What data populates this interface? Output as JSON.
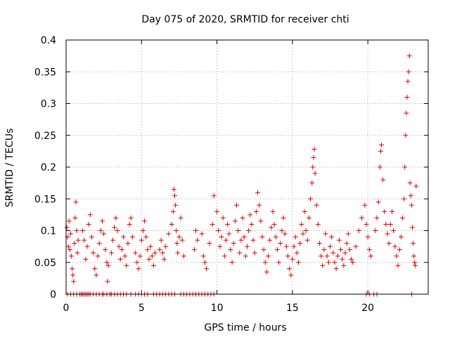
{
  "chart_data": {
    "type": "scatter",
    "title": "Day 075 of 2020, SRMTID for receiver chti",
    "xlabel": "GPS time / hours",
    "ylabel": "SRMTID / TECUs",
    "xlim": [
      0,
      24
    ],
    "ylim": [
      0,
      0.4
    ],
    "xticks": [
      0,
      5,
      10,
      15,
      20
    ],
    "xtick_labels": [
      "0",
      "5",
      "10",
      "15",
      "20"
    ],
    "yticks": [
      0,
      0.05,
      0.1,
      0.15,
      0.2,
      0.25,
      0.3,
      0.35,
      0.4
    ],
    "ytick_labels": [
      "0",
      "0.05",
      "0.1",
      "0.15",
      "0.2",
      "0.25",
      "0.3",
      "0.35",
      "0.4"
    ],
    "grid": true,
    "marker": "+",
    "series": [
      {
        "name": "SRMTID",
        "color": "#dd0000",
        "points": [
          [
            0.05,
            0.105
          ],
          [
            0.1,
            0.09
          ],
          [
            0.15,
            0.075
          ],
          [
            0.2,
            0.115
          ],
          [
            0.25,
            0.07
          ],
          [
            0.3,
            0.095
          ],
          [
            0.35,
            0.06
          ],
          [
            0.4,
            0.04
          ],
          [
            0.45,
            0.03
          ],
          [
            0.5,
            0.02
          ],
          [
            0.55,
            0.08
          ],
          [
            0.6,
            0.12
          ],
          [
            0.65,
            0.145
          ],
          [
            0.7,
            0.1
          ],
          [
            0.75,
            0.065
          ],
          [
            0.8,
            0.085
          ],
          [
            1.1,
            0.1
          ],
          [
            1.2,
            0.085
          ],
          [
            1.3,
            0.055
          ],
          [
            1.4,
            0.075
          ],
          [
            1.5,
            0.11
          ],
          [
            1.6,
            0.125
          ],
          [
            1.7,
            0.09
          ],
          [
            1.8,
            0.065
          ],
          [
            1.9,
            0.04
          ],
          [
            2.0,
            0.03
          ],
          [
            2.1,
            0.06
          ],
          [
            2.2,
            0.08
          ],
          [
            2.3,
            0.1
          ],
          [
            2.4,
            0.115
          ],
          [
            2.5,
            0.095
          ],
          [
            2.6,
            0.07
          ],
          [
            2.7,
            0.05
          ],
          [
            2.75,
            0.02
          ],
          [
            2.8,
            0.045
          ],
          [
            3.0,
            0.065
          ],
          [
            3.1,
            0.085
          ],
          [
            3.2,
            0.105
          ],
          [
            3.3,
            0.12
          ],
          [
            3.4,
            0.1
          ],
          [
            3.5,
            0.075
          ],
          [
            3.6,
            0.055
          ],
          [
            3.7,
            0.07
          ],
          [
            3.8,
            0.09
          ],
          [
            3.9,
            0.06
          ],
          [
            4.0,
            0.045
          ],
          [
            4.1,
            0.08
          ],
          [
            4.2,
            0.11
          ],
          [
            4.3,
            0.12
          ],
          [
            4.4,
            0.09
          ],
          [
            4.6,
            0.065
          ],
          [
            4.7,
            0.05
          ],
          [
            4.8,
            0.04
          ],
          [
            4.9,
            0.06
          ],
          [
            5.0,
            0.085
          ],
          [
            5.1,
            0.1
          ],
          [
            5.2,
            0.115
          ],
          [
            5.3,
            0.09
          ],
          [
            5.4,
            0.07
          ],
          [
            5.5,
            0.055
          ],
          [
            5.6,
            0.075
          ],
          [
            5.7,
            0.06
          ],
          [
            5.8,
            0.045
          ],
          [
            5.9,
            0.065
          ],
          [
            6.2,
            0.07
          ],
          [
            6.3,
            0.085
          ],
          [
            6.4,
            0.065
          ],
          [
            6.5,
            0.055
          ],
          [
            6.6,
            0.075
          ],
          [
            6.8,
            0.095
          ],
          [
            7.0,
            0.11
          ],
          [
            7.1,
            0.13
          ],
          [
            7.15,
            0.165
          ],
          [
            7.2,
            0.155
          ],
          [
            7.25,
            0.14
          ],
          [
            7.3,
            0.1
          ],
          [
            7.35,
            0.08
          ],
          [
            7.4,
            0.065
          ],
          [
            7.5,
            0.09
          ],
          [
            7.6,
            0.12
          ],
          [
            7.7,
            0.085
          ],
          [
            7.8,
            0.06
          ],
          [
            8.5,
            0.07
          ],
          [
            8.6,
            0.1
          ],
          [
            8.7,
            0.085
          ],
          [
            9.0,
            0.095
          ],
          [
            9.1,
            0.06
          ],
          [
            9.2,
            0.05
          ],
          [
            9.3,
            0.04
          ],
          [
            9.5,
            0.08
          ],
          [
            9.7,
            0.11
          ],
          [
            9.8,
            0.155
          ],
          [
            10.0,
            0.13
          ],
          [
            10.1,
            0.1
          ],
          [
            10.2,
            0.075
          ],
          [
            10.3,
            0.09
          ],
          [
            10.4,
            0.12
          ],
          [
            10.5,
            0.06
          ],
          [
            10.6,
            0.085
          ],
          [
            10.7,
            0.11
          ],
          [
            10.8,
            0.095
          ],
          [
            10.9,
            0.07
          ],
          [
            11.0,
            0.05
          ],
          [
            11.1,
            0.08
          ],
          [
            11.2,
            0.115
          ],
          [
            11.3,
            0.14
          ],
          [
            11.4,
            0.1
          ],
          [
            11.5,
            0.065
          ],
          [
            11.6,
            0.085
          ],
          [
            11.7,
            0.12
          ],
          [
            11.8,
            0.09
          ],
          [
            11.9,
            0.06
          ],
          [
            12.0,
            0.075
          ],
          [
            12.1,
            0.1
          ],
          [
            12.2,
            0.125
          ],
          [
            12.3,
            0.11
          ],
          [
            12.4,
            0.085
          ],
          [
            12.5,
            0.065
          ],
          [
            12.6,
            0.13
          ],
          [
            12.7,
            0.16
          ],
          [
            12.8,
            0.14
          ],
          [
            12.9,
            0.115
          ],
          [
            13.0,
            0.09
          ],
          [
            13.1,
            0.07
          ],
          [
            13.2,
            0.05
          ],
          [
            13.3,
            0.035
          ],
          [
            13.4,
            0.06
          ],
          [
            13.5,
            0.085
          ],
          [
            13.6,
            0.105
          ],
          [
            13.7,
            0.13
          ],
          [
            13.8,
            0.11
          ],
          [
            13.9,
            0.09
          ],
          [
            14.0,
            0.07
          ],
          [
            14.1,
            0.05
          ],
          [
            14.2,
            0.08
          ],
          [
            14.3,
            0.1
          ],
          [
            14.4,
            0.12
          ],
          [
            14.5,
            0.095
          ],
          [
            14.6,
            0.075
          ],
          [
            14.7,
            0.06
          ],
          [
            14.8,
            0.04
          ],
          [
            14.9,
            0.03
          ],
          [
            15.0,
            0.055
          ],
          [
            15.1,
            0.075
          ],
          [
            15.2,
            0.09
          ],
          [
            15.3,
            0.065
          ],
          [
            15.4,
            0.05
          ],
          [
            15.5,
            0.08
          ],
          [
            15.6,
            0.11
          ],
          [
            15.7,
            0.095
          ],
          [
            15.8,
            0.13
          ],
          [
            15.9,
            0.1
          ],
          [
            16.0,
            0.085
          ],
          [
            16.1,
            0.12
          ],
          [
            16.2,
            0.15
          ],
          [
            16.3,
            0.175
          ],
          [
            16.35,
            0.2
          ],
          [
            16.4,
            0.215
          ],
          [
            16.45,
            0.228
          ],
          [
            16.5,
            0.19
          ],
          [
            16.6,
            0.14
          ],
          [
            16.7,
            0.11
          ],
          [
            16.8,
            0.08
          ],
          [
            16.9,
            0.06
          ],
          [
            17.0,
            0.045
          ],
          [
            17.1,
            0.07
          ],
          [
            17.2,
            0.095
          ],
          [
            17.3,
            0.06
          ],
          [
            17.4,
            0.05
          ],
          [
            17.5,
            0.075
          ],
          [
            17.6,
            0.09
          ],
          [
            17.7,
            0.065
          ],
          [
            17.8,
            0.05
          ],
          [
            17.9,
            0.04
          ],
          [
            18.0,
            0.06
          ],
          [
            18.1,
            0.085
          ],
          [
            18.2,
            0.07
          ],
          [
            18.3,
            0.055
          ],
          [
            18.4,
            0.045
          ],
          [
            18.5,
            0.065
          ],
          [
            18.6,
            0.08
          ],
          [
            18.7,
            0.095
          ],
          [
            18.8,
            0.07
          ],
          [
            18.9,
            0.055
          ],
          [
            19.0,
            0.05
          ],
          [
            19.2,
            0.075
          ],
          [
            19.4,
            0.1
          ],
          [
            19.6,
            0.12
          ],
          [
            19.8,
            0.14
          ],
          [
            19.9,
            0.11
          ],
          [
            20.0,
            0.09
          ],
          [
            20.1,
            0.07
          ],
          [
            20.2,
            0.06
          ],
          [
            20.5,
            0.1
          ],
          [
            20.6,
            0.12
          ],
          [
            20.7,
            0.145
          ],
          [
            20.8,
            0.2
          ],
          [
            20.85,
            0.225
          ],
          [
            20.9,
            0.235
          ],
          [
            21.0,
            0.18
          ],
          [
            21.1,
            0.13
          ],
          [
            21.2,
            0.11
          ],
          [
            21.3,
            0.095
          ],
          [
            21.4,
            0.08
          ],
          [
            21.5,
            0.11
          ],
          [
            21.6,
            0.13
          ],
          [
            21.7,
            0.1
          ],
          [
            21.8,
            0.075
          ],
          [
            21.9,
            0.06
          ],
          [
            22.0,
            0.045
          ],
          [
            22.1,
            0.07
          ],
          [
            22.2,
            0.09
          ],
          [
            22.3,
            0.12
          ],
          [
            22.4,
            0.15
          ],
          [
            22.45,
            0.2
          ],
          [
            22.5,
            0.25
          ],
          [
            22.55,
            0.285
          ],
          [
            22.6,
            0.31
          ],
          [
            22.65,
            0.335
          ],
          [
            22.7,
            0.35
          ],
          [
            22.75,
            0.375
          ],
          [
            22.8,
            0.175
          ],
          [
            22.85,
            0.155
          ],
          [
            22.9,
            0.14
          ],
          [
            22.95,
            0.105
          ],
          [
            23.0,
            0.08
          ],
          [
            23.05,
            0.06
          ],
          [
            23.1,
            0.05
          ],
          [
            23.15,
            0.045
          ],
          [
            23.2,
            0.17
          ]
        ],
        "zero_points_x": [
          0.1,
          0.3,
          0.5,
          0.7,
          0.9,
          1.0,
          1.1,
          1.2,
          1.3,
          1.4,
          1.5,
          1.6,
          1.8,
          2.0,
          2.2,
          2.4,
          2.5,
          2.7,
          2.9,
          3.0,
          3.2,
          3.4,
          3.6,
          3.8,
          4.0,
          4.3,
          4.6,
          4.8,
          5.0,
          5.2,
          5.4,
          5.8,
          6.0,
          6.2,
          6.4,
          6.6,
          6.8,
          7.0,
          7.2,
          7.6,
          7.8,
          8.0,
          8.2,
          8.4,
          8.6,
          8.8,
          9.0,
          9.2,
          9.4,
          9.6,
          9.8,
          19.9,
          20.1,
          20.4,
          20.6,
          22.9
        ]
      }
    ]
  }
}
